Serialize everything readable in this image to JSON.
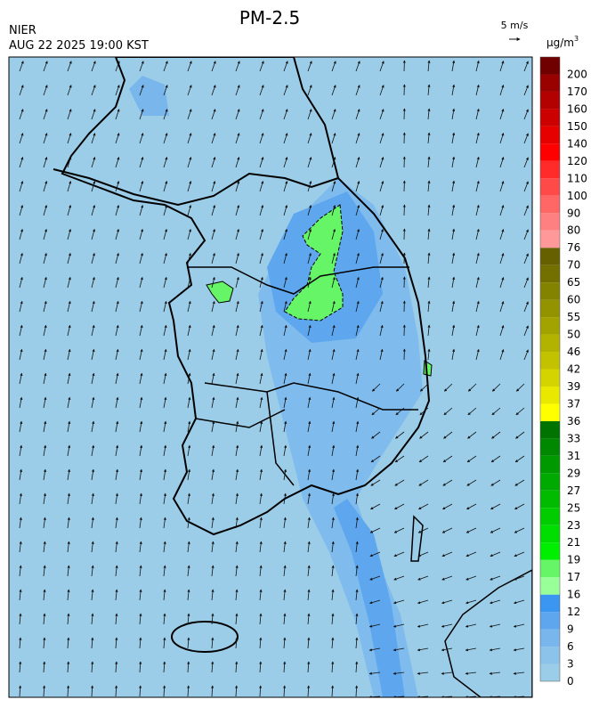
{
  "header": {
    "title": "PM-2.5",
    "source": "NIER",
    "datetime": "AUG 22 2025 19:00 KST"
  },
  "wind_scale": {
    "label": "5 m/s"
  },
  "legend": {
    "unit": "μg/m",
    "unit_sup": "3",
    "levels": [
      {
        "label": "0",
        "color": "#9bcde8"
      },
      {
        "label": "3",
        "color": "#8cc3ea"
      },
      {
        "label": "6",
        "color": "#78b6ec"
      },
      {
        "label": "9",
        "color": "#5ea7ef"
      },
      {
        "label": "12",
        "color": "#3b96f1"
      },
      {
        "label": "16",
        "color": "#99ff99"
      },
      {
        "label": "17",
        "color": "#66f566"
      },
      {
        "label": "19",
        "color": "#00ee00"
      },
      {
        "label": "21",
        "color": "#00dd00"
      },
      {
        "label": "23",
        "color": "#00cc00"
      },
      {
        "label": "25",
        "color": "#00bb00"
      },
      {
        "label": "27",
        "color": "#00aa00"
      },
      {
        "label": "29",
        "color": "#009900"
      },
      {
        "label": "31",
        "color": "#008800"
      },
      {
        "label": "33",
        "color": "#007300"
      },
      {
        "label": "36",
        "color": "#ffff00"
      },
      {
        "label": "37",
        "color": "#e8e800"
      },
      {
        "label": "39",
        "color": "#d4d400"
      },
      {
        "label": "42",
        "color": "#c2c200"
      },
      {
        "label": "46",
        "color": "#b2b200"
      },
      {
        "label": "50",
        "color": "#a3a300"
      },
      {
        "label": "55",
        "color": "#939300"
      },
      {
        "label": "60",
        "color": "#838300"
      },
      {
        "label": "65",
        "color": "#747000"
      },
      {
        "label": "70",
        "color": "#666000"
      },
      {
        "label": "76",
        "color": "#ff9999"
      },
      {
        "label": "80",
        "color": "#ff8080"
      },
      {
        "label": "90",
        "color": "#ff6666"
      },
      {
        "label": "100",
        "color": "#ff4a4a"
      },
      {
        "label": "110",
        "color": "#ff2a2a"
      },
      {
        "label": "120",
        "color": "#ff0000"
      },
      {
        "label": "140",
        "color": "#e60000"
      },
      {
        "label": "150",
        "color": "#cc0000"
      },
      {
        "label": "160",
        "color": "#b30000"
      },
      {
        "label": "170",
        "color": "#990000"
      },
      {
        "label": "200",
        "color": "#700000"
      }
    ]
  }
}
